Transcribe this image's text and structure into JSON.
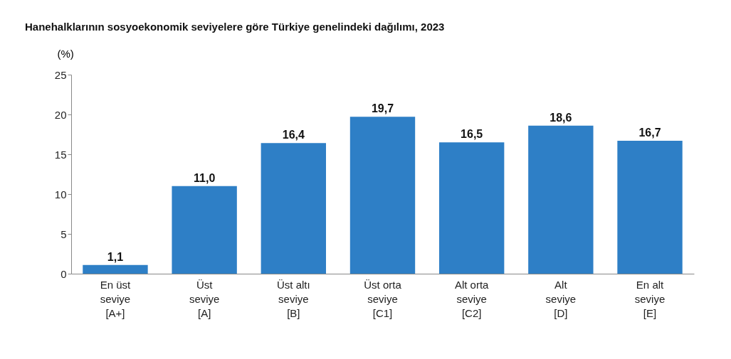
{
  "chart_data": {
    "type": "bar",
    "title": "Hanehalklarının sosyoekonomik seviyelere göre Türkiye genelindeki dağılımı, 2023",
    "ylabel": "(%)",
    "categories": [
      "En üst\nseviye\n[A+]",
      "Üst\nseviye\n[A]",
      "Üst altı\nseviye\n[B]",
      "Üst orta\nseviye\n[C1]",
      "Alt orta\nseviye\n[C2]",
      "Alt\nseviye\n[D]",
      "En alt\nseviye\n[E]"
    ],
    "values": [
      1.1,
      11.0,
      16.4,
      19.7,
      16.5,
      18.6,
      16.7
    ],
    "value_labels": [
      "1,1",
      "11,0",
      "16,4",
      "19,7",
      "16,5",
      "18,6",
      "16,7"
    ],
    "color": "#2e7fc6",
    "ylim": [
      0,
      25
    ],
    "yticks": [
      0,
      5,
      10,
      15,
      20,
      25
    ],
    "grid": false
  }
}
